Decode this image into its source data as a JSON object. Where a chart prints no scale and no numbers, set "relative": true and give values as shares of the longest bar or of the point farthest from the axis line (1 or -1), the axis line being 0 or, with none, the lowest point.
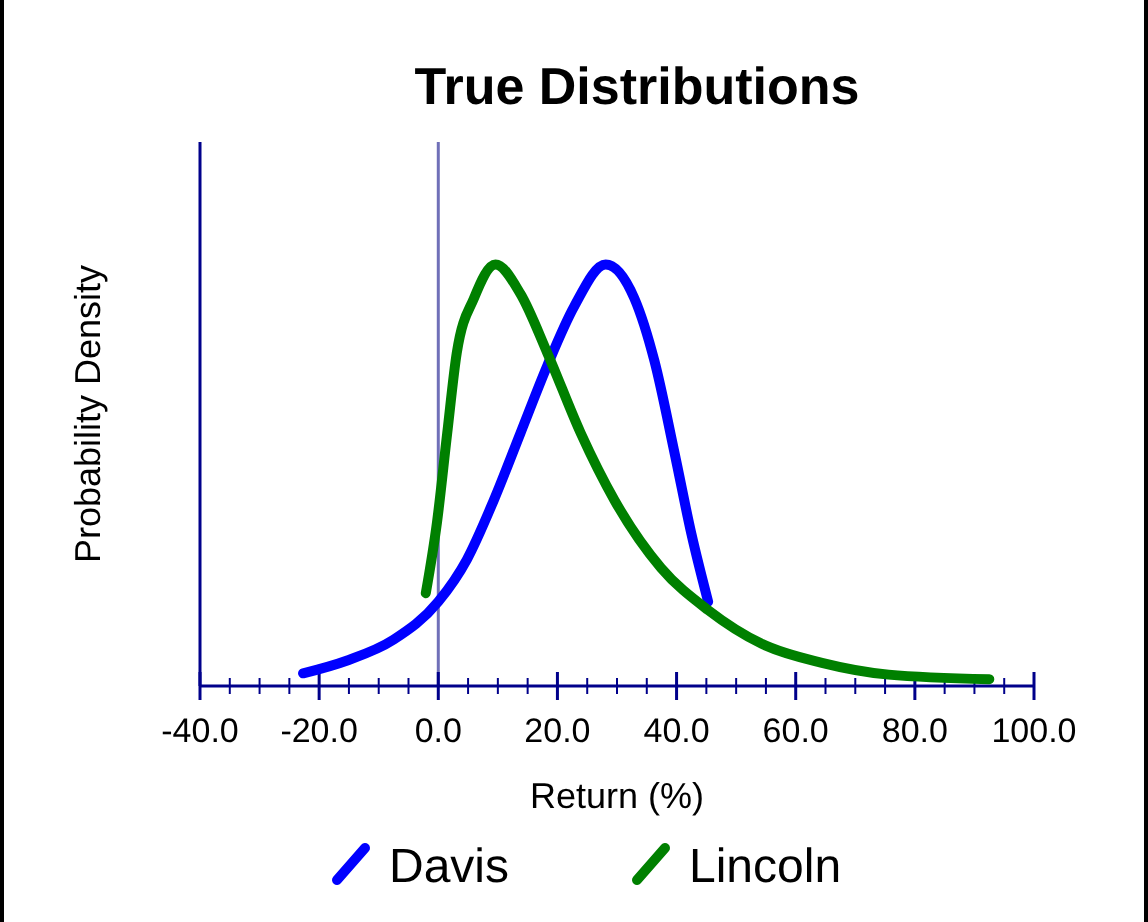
{
  "chart_data": {
    "type": "line",
    "title": "True Distributions",
    "xlabel": "Return (%)",
    "ylabel": "Probability Density",
    "relative": true,
    "xlim": [
      -40,
      100
    ],
    "xticks": [
      {
        "value": -40,
        "label": "-40.0"
      },
      {
        "value": -20,
        "label": "-20.0"
      },
      {
        "value": 0,
        "label": "0.0"
      },
      {
        "value": 20,
        "label": "20.0"
      },
      {
        "value": 40,
        "label": "40.0"
      },
      {
        "value": 60,
        "label": "60.0"
      },
      {
        "value": 80,
        "label": "80.0"
      },
      {
        "value": 100,
        "label": "100.0"
      }
    ],
    "series": [
      {
        "name": "Davis",
        "color": "#0000ff",
        "x": [
          -22.7,
          -15.4,
          -7.5,
          0,
          4.8,
          9.3,
          13.8,
          18.3,
          22.8,
          28.1,
          32.9,
          36.3,
          39.7,
          42.5,
          45.3
        ],
        "values": [
          0.03,
          0.06,
          0.11,
          0.2,
          0.3,
          0.44,
          0.6,
          0.76,
          0.9,
          1,
          0.92,
          0.77,
          0.55,
          0.36,
          0.2
        ]
      },
      {
        "name": "Lincoln",
        "color": "#008000",
        "x": [
          -2.1,
          -0.2,
          1.5,
          3.1,
          6,
          9.6,
          13.8,
          18.3,
          23.9,
          29.6,
          37.4,
          45.3,
          54.3,
          64.4,
          75.6,
          92.5
        ],
        "values": [
          0.22,
          0.39,
          0.6,
          0.79,
          0.92,
          1,
          0.93,
          0.79,
          0.6,
          0.44,
          0.28,
          0.18,
          0.1,
          0.055,
          0.027,
          0.016
        ]
      }
    ],
    "ref_lines": [
      {
        "axis": "x",
        "value": 0,
        "color": "#7070b8"
      }
    ],
    "legend": "bottom",
    "grid": false,
    "line_style": "solid"
  }
}
